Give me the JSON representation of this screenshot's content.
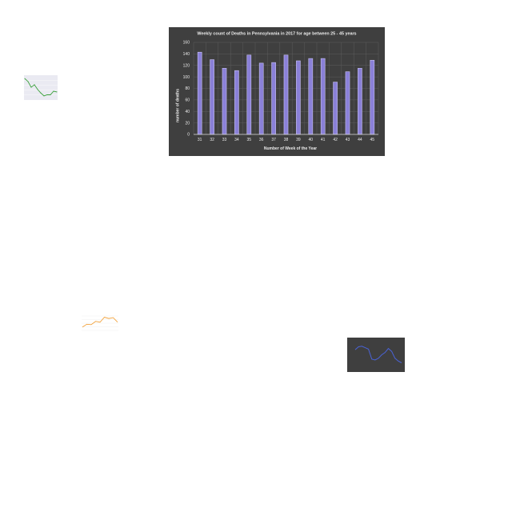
{
  "colors": {
    "page_background": "#ffffff",
    "main_chart_background": "#3f3f3f",
    "main_bar_fill": "#8a80d8",
    "main_bar_stroke": "#c7c1f2",
    "main_text": "#ececec",
    "thumb_green_line": "#3aa13a",
    "thumb_orange_line": "#f2a23c",
    "thumb_dark_line": "#4a63d8"
  },
  "chart_data": [
    {
      "type": "bar",
      "title": "Weekly count of Deaths in Pennsylvania in 2017 for age between 25 - 45 years",
      "xlabel": "Number of Week of the Year",
      "ylabel": "number of deaths",
      "categories": [
        "31",
        "32",
        "33",
        "34",
        "35",
        "36",
        "37",
        "38",
        "39",
        "40",
        "41",
        "42",
        "43",
        "44",
        "45"
      ],
      "values": [
        143,
        130,
        115,
        111,
        138,
        124,
        125,
        138,
        128,
        132,
        132,
        91,
        109,
        115,
        129
      ],
      "ylim": [
        0,
        160
      ],
      "yticks": [
        0,
        20,
        40,
        60,
        80,
        100,
        120,
        140,
        160
      ],
      "grid": true
    },
    {
      "type": "line",
      "values": [
        100,
        92,
        76,
        83,
        70,
        60,
        52,
        55,
        55,
        65,
        63
      ],
      "grid": true
    },
    {
      "type": "line",
      "values": [
        46,
        53,
        52,
        60,
        58,
        70,
        67,
        69,
        58
      ],
      "grid": true
    },
    {
      "type": "line",
      "values": [
        88,
        98,
        100,
        95,
        90,
        55,
        52,
        58,
        70,
        78,
        92,
        82,
        58,
        48,
        42
      ],
      "grid": false
    }
  ]
}
